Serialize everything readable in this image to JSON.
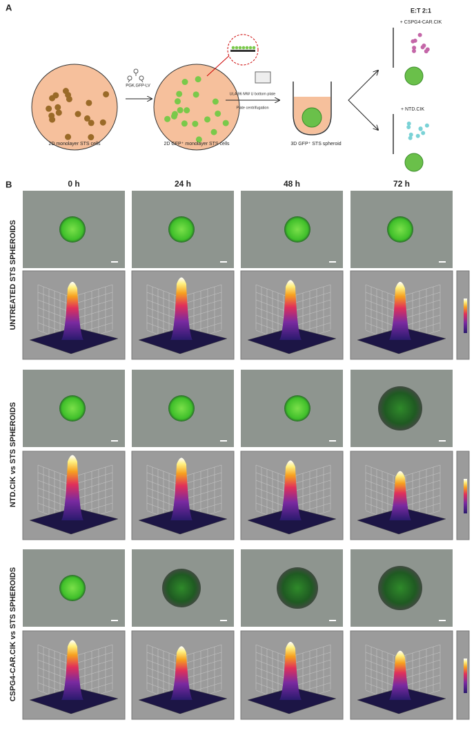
{
  "panel_a": {
    "label": "A",
    "steps": [
      "2D monolayer STS cells",
      "2D GFP⁺ monolayer STS cells",
      "3D GFP⁺ STS spheroid"
    ],
    "vector": "PGK.GFP-LV",
    "plate": "ULA 96 MW U bottom plate",
    "centrifugation": "Plate centrifugation",
    "ratio": "E:T 2:1",
    "treatments": [
      "+ CSPG4-CAR.CIK",
      "+ NTD.CIK"
    ]
  },
  "panel_b": {
    "label": "B",
    "time_points": [
      "0 h",
      "24 h",
      "48 h",
      "72 h"
    ],
    "groups": [
      "UNTREATED STS SPHEROIDS",
      "NTD.CIK vs STS SPHEROIDS",
      "CSPG4-CAR.CIK vs STS SPHEROIDS"
    ]
  }
}
